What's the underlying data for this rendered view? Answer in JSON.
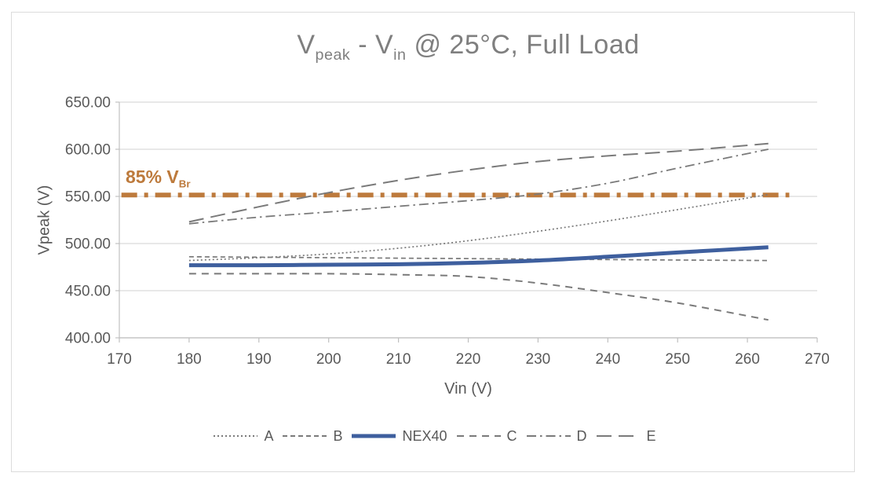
{
  "colors": {
    "grid": "#d9d9d9",
    "axis": "#c0c0c0",
    "tick_text": "#595959",
    "title_text": "#7f7f7f",
    "legend_text": "#595959",
    "card_border": "#dcdcdc",
    "series_gray": "#7a7a7a",
    "brand_blue": "#3e5f9e",
    "limit_orange": "#bd7a3c"
  },
  "chart_data": {
    "type": "line",
    "title_plain": "Vpeak - Vin @ 25°C, Full Load",
    "title_segments": [
      {
        "text": "V"
      },
      {
        "text": "peak",
        "sub": true
      },
      {
        "text": " - V"
      },
      {
        "text": "in",
        "sub": true
      },
      {
        "text": " @ 25°C, Full Load"
      }
    ],
    "xlabel": "Vin (V)",
    "ylabel": "Vpeak (V)",
    "xlim": [
      170,
      270
    ],
    "ylim": [
      400,
      650
    ],
    "grid": true,
    "xticks": [
      170,
      180,
      190,
      200,
      210,
      220,
      230,
      240,
      250,
      260,
      270
    ],
    "xtick_labels": [
      "170",
      "180",
      "190",
      "200",
      "210",
      "220",
      "230",
      "240",
      "250",
      "260",
      "270"
    ],
    "yticks": [
      400,
      450,
      500,
      550,
      600,
      650
    ],
    "ytick_labels": [
      "400.00",
      "450.00",
      "500.00",
      "550.00",
      "600.00",
      "650.00"
    ],
    "x": [
      180,
      190,
      200,
      210,
      220,
      230,
      240,
      250,
      263
    ],
    "series": [
      {
        "name": "A",
        "dash": "dotted",
        "color": "#7a7a7a",
        "width": 1.7,
        "values": [
          482,
          485,
          489,
          495,
          503,
          513,
          524,
          536,
          552
        ]
      },
      {
        "name": "B",
        "dash": "small-dash",
        "color": "#7a7a7a",
        "width": 1.7,
        "values": [
          486,
          485.5,
          485,
          484.5,
          484,
          483.5,
          483,
          482.5,
          482
        ]
      },
      {
        "name": "NEX40",
        "dash": "solid",
        "color": "#3e5f9e",
        "width": 5,
        "values": [
          477,
          477,
          477.5,
          478,
          479.5,
          482,
          486,
          490.5,
          496
        ]
      },
      {
        "name": "C",
        "dash": "dash",
        "color": "#7a7a7a",
        "width": 2,
        "values": [
          468,
          468,
          468,
          467,
          465,
          458,
          448,
          437,
          419
        ]
      },
      {
        "name": "D",
        "dash": "dash-dot",
        "color": "#7a7a7a",
        "width": 1.8,
        "values": [
          521,
          528,
          533.5,
          539.5,
          545.5,
          552.5,
          564,
          580,
          600
        ]
      },
      {
        "name": "E",
        "dash": "long-dash",
        "color": "#7a7a7a",
        "width": 2,
        "values": [
          523,
          539,
          554,
          567,
          578,
          587,
          593,
          598,
          606
        ]
      }
    ],
    "annotation": {
      "label_plain": "85% VBr",
      "label_segments": [
        {
          "text": "85% V"
        },
        {
          "text": "Br",
          "sub": true
        }
      ],
      "y": 551.5,
      "x_start": 170.3,
      "x_end": 266,
      "color": "#bd7a3c",
      "dash": "bold-dash-dot",
      "width": 6
    },
    "legend": {
      "position": "bottom",
      "entries": [
        "A",
        "B",
        "NEX40",
        "C",
        "D",
        "E"
      ]
    }
  }
}
